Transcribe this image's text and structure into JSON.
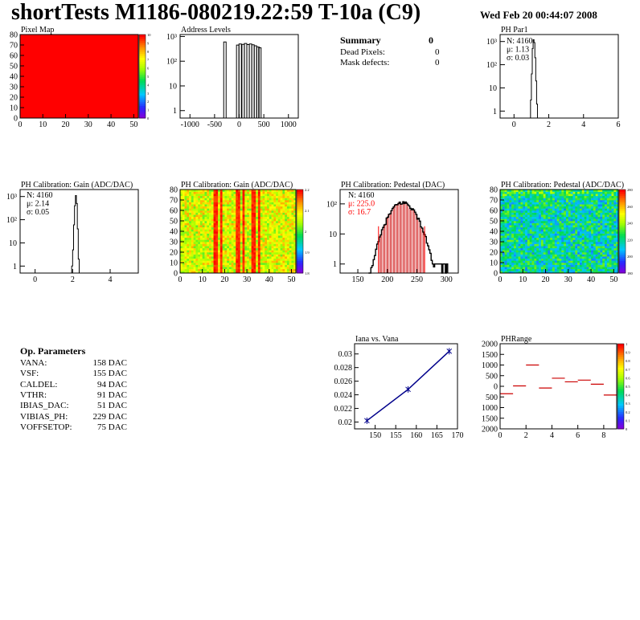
{
  "header": {
    "title": "shortTests M1186-080219.22:59 T-10a (C9)",
    "date": "Wed Feb 20 00:44:07 2008"
  },
  "summary": {
    "title": "Summary",
    "title_value": "0",
    "rows": [
      {
        "label": "Dead Pixels:",
        "value": "0"
      },
      {
        "label": "Mask defects:",
        "value": "0"
      }
    ]
  },
  "op_params": {
    "title": "Op. Parameters",
    "rows": [
      {
        "label": "VANA:",
        "value": "158 DAC"
      },
      {
        "label": "VSF:",
        "value": "155 DAC"
      },
      {
        "label": "CALDEL:",
        "value": "94 DAC"
      },
      {
        "label": "VTHR:",
        "value": "91 DAC"
      },
      {
        "label": "IBIAS_DAC:",
        "value": "51 DAC"
      },
      {
        "label": "VIBIAS_PH:",
        "value": "229 DAC"
      },
      {
        "label": "VOFFSETOP:",
        "value": "75 DAC"
      }
    ]
  },
  "colors": {
    "frame": "#000000",
    "fill_map": "#ff0000",
    "series_blue": "#00008b",
    "stats_red": "#ff0000",
    "range_marker": "#cc0000"
  },
  "chart_data": [
    {
      "id": "pixel_map",
      "type": "heatmap",
      "title": "Pixel Map",
      "xlim": [
        0,
        52
      ],
      "ylim": [
        0,
        80
      ],
      "xticks": [
        "0",
        "10",
        "20",
        "30",
        "40",
        "50"
      ],
      "yticks": [
        "0",
        "10",
        "20",
        "30",
        "40",
        "50",
        "60",
        "70",
        "80"
      ],
      "fill_value": 10,
      "colorbar_ticks": [
        "0",
        "1",
        "2",
        "3",
        "4",
        "5",
        "6",
        "7",
        "8",
        "9",
        "10"
      ]
    },
    {
      "id": "address_levels",
      "type": "bar",
      "title": "Address Levels",
      "ylog": true,
      "xlim": [
        -1200,
        1200
      ],
      "ylim_log": [
        0.5,
        1200
      ],
      "xticks": [
        "-1000",
        "-500",
        "0",
        "500",
        "1000"
      ],
      "yticks": [
        {
          "v": 1,
          "l": "1"
        },
        {
          "v": 10,
          "l": "10"
        },
        {
          "v": 100,
          "l": "10²"
        },
        {
          "v": 1000,
          "l": "10³"
        }
      ],
      "peaks_x": [
        -290,
        -30,
        20,
        80,
        130,
        180,
        230,
        280,
        330,
        380,
        420
      ],
      "peaks_y": [
        600,
        450,
        500,
        480,
        520,
        470,
        500,
        460,
        420,
        380,
        350
      ]
    },
    {
      "id": "ph_par1",
      "type": "bar",
      "title": "PH Par1",
      "ylog": true,
      "xlim": [
        -0.8,
        6
      ],
      "ylim_log": [
        0.5,
        2000
      ],
      "xticks": [
        "0",
        "2",
        "4",
        "6"
      ],
      "yticks": [
        {
          "v": 1,
          "l": "1"
        },
        {
          "v": 10,
          "l": "10"
        },
        {
          "v": 100,
          "l": "10²"
        },
        {
          "v": 1000,
          "l": "10³"
        }
      ],
      "stats": [
        "N: 4160",
        "μ: 1.13",
        "σ: 0.03"
      ],
      "x": [
        0.95,
        1.0,
        1.05,
        1.1,
        1.15,
        1.2,
        1.25,
        1.3
      ],
      "y": [
        3,
        40,
        500,
        1200,
        900,
        200,
        20,
        2
      ]
    },
    {
      "id": "gain_1d",
      "type": "bar",
      "title": "PH Calibration: Gain (ADC/DAC)",
      "ylog": true,
      "xlim": [
        -0.8,
        5.5
      ],
      "ylim_log": [
        0.5,
        2000
      ],
      "xticks": [
        "0",
        "2",
        "4"
      ],
      "yticks": [
        {
          "v": 1,
          "l": "1"
        },
        {
          "v": 10,
          "l": "10"
        },
        {
          "v": 100,
          "l": "10²"
        },
        {
          "v": 1000,
          "l": "10³"
        }
      ],
      "stats": [
        "N: 4160",
        "μ: 2.14",
        "σ: 0.05"
      ],
      "x": [
        1.95,
        2.0,
        2.05,
        2.1,
        2.15,
        2.2,
        2.25,
        2.3
      ],
      "y": [
        1,
        5,
        60,
        400,
        1100,
        500,
        40,
        2
      ]
    },
    {
      "id": "gain_map",
      "type": "heatmap",
      "title": "PH Calibration: Gain (ADC/DAC)",
      "xlim": [
        0,
        52
      ],
      "ylim": [
        0,
        80
      ],
      "xticks": [
        "0",
        "10",
        "20",
        "30",
        "40",
        "50"
      ],
      "yticks": [
        "0",
        "10",
        "20",
        "30",
        "40",
        "50",
        "60",
        "70",
        "80"
      ],
      "colorbar_ticks": [
        "1.8",
        "1.9",
        "2",
        "2.1",
        "2.2"
      ],
      "hot_columns": [
        15,
        16,
        18,
        25,
        26,
        28,
        32,
        33,
        35
      ]
    },
    {
      "id": "pedestal_1d",
      "type": "bar",
      "title": "PH Calibration: Pedestal (DAC)",
      "ylog": true,
      "xlim": [
        120,
        320
      ],
      "ylim_log": [
        0.5,
        300
      ],
      "xticks": [
        "150",
        "200",
        "250",
        "300"
      ],
      "yticks": [
        {
          "v": 1,
          "l": "1"
        },
        {
          "v": 10,
          "l": "10"
        },
        {
          "v": 100,
          "l": "10²"
        }
      ],
      "stats": [
        "N: 4160",
        "μ: 225.0",
        "σ: 16.7"
      ],
      "mean": 225.0,
      "sigma": 16.7,
      "range_lines": [
        185,
        263
      ]
    },
    {
      "id": "pedestal_map",
      "type": "heatmap",
      "title": "PH Calibration: Pedestal (ADC/DAC)",
      "xlim": [
        0,
        52
      ],
      "ylim": [
        0,
        80
      ],
      "xticks": [
        "0",
        "10",
        "20",
        "30",
        "40",
        "50"
      ],
      "yticks": [
        "0",
        "10",
        "20",
        "30",
        "40",
        "50",
        "60",
        "70",
        "80"
      ],
      "colorbar_ticks": [
        "180",
        "200",
        "220",
        "240",
        "260",
        "280"
      ]
    },
    {
      "id": "iana_vana",
      "type": "line",
      "title": "Iana vs. Vana",
      "xlim": [
        145,
        170
      ],
      "ylim": [
        0.019,
        0.0315
      ],
      "xticks": [
        "150",
        "155",
        "160",
        "165",
        "170"
      ],
      "yticks": [
        "0.02",
        "0.022",
        "0.024",
        "0.026",
        "0.028",
        "0.03"
      ],
      "x": [
        148,
        158,
        168
      ],
      "y": [
        0.0202,
        0.0248,
        0.0304
      ]
    },
    {
      "id": "ph_range",
      "type": "scatter",
      "title": "PHRange",
      "xlim": [
        0,
        9
      ],
      "ylim": [
        -2000,
        2000
      ],
      "xticks": [
        "0",
        "2",
        "4",
        "6",
        "8"
      ],
      "yticks": [
        "2000",
        "1500",
        "1000",
        "500",
        "0",
        "500",
        "1000",
        "1500",
        "2000"
      ],
      "x": [
        0.5,
        1.5,
        2.5,
        3.5,
        4.5,
        5.5,
        6.5,
        7.5,
        8.5
      ],
      "y": [
        -350,
        20,
        1000,
        -80,
        380,
        210,
        290,
        100,
        -410
      ],
      "colorbar_ticks": [
        "0",
        "0.1",
        "0.2",
        "0.3",
        "0.4",
        "0.5",
        "0.6",
        "0.7",
        "0.8",
        "0.9",
        "1"
      ]
    }
  ]
}
